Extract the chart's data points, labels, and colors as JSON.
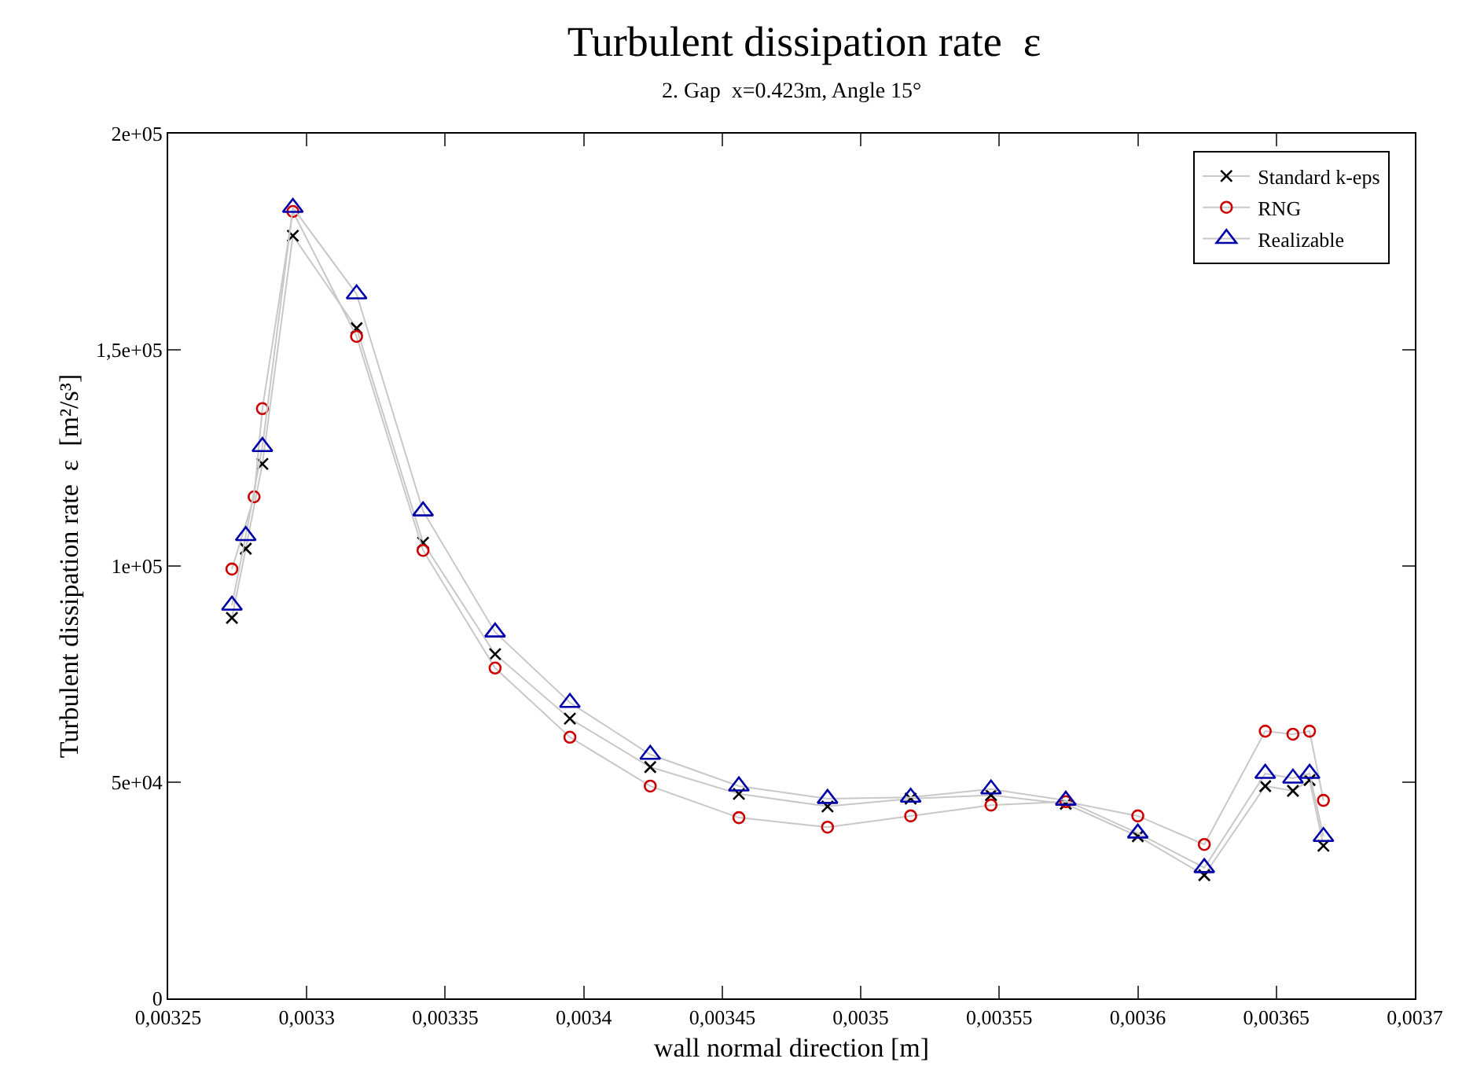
{
  "chart_data": {
    "type": "line",
    "title": "Turbulent dissipation rate  ε",
    "subtitle": "2. Gap  x=0.423m, Angle 15°",
    "xlabel": "wall normal direction [m]",
    "ylabel": "Turbulent dissipation rate  ε  [m²/s³]",
    "x": [
      0.003273,
      0.003278,
      0.003281,
      0.003284,
      0.003295,
      0.003318,
      0.003342,
      0.003368,
      0.003395,
      0.003424,
      0.003456,
      0.003488,
      0.003518,
      0.003547,
      0.003574,
      0.0036,
      0.003624,
      0.003646,
      0.003656,
      0.003662,
      0.003667
    ],
    "series": [
      {
        "name": "Standard k-eps",
        "color": "#000000",
        "marker": "cross",
        "values": [
          88000,
          104000,
          null,
          123600,
          176400,
          155000,
          105400,
          79600,
          64700,
          53500,
          47300,
          44400,
          46200,
          47000,
          45000,
          37500,
          28500,
          49100,
          48000,
          50500,
          35300
        ]
      },
      {
        "name": "RNG",
        "color": "#cc0000",
        "marker": "circle",
        "values": [
          99300,
          null,
          116000,
          136400,
          182000,
          153100,
          103600,
          76400,
          60400,
          49100,
          41800,
          39600,
          42200,
          44700,
          45500,
          42200,
          35600,
          61800,
          61100,
          61800,
          45800
        ]
      },
      {
        "name": "Realizable",
        "color": "#0000aa",
        "marker": "triangle",
        "values": [
          90900,
          107000,
          null,
          127600,
          182900,
          162900,
          112700,
          84700,
          68400,
          56400,
          49100,
          46200,
          46500,
          48400,
          45800,
          38200,
          30200,
          52000,
          50900,
          52000,
          37400
        ]
      }
    ],
    "xlim": [
      0.00325,
      0.0037
    ],
    "ylim": [
      0,
      200000
    ],
    "xticks": [
      {
        "value": 0.00325,
        "label": "0,00325"
      },
      {
        "value": 0.0033,
        "label": "0,0033"
      },
      {
        "value": 0.00335,
        "label": "0,00335"
      },
      {
        "value": 0.0034,
        "label": "0,0034"
      },
      {
        "value": 0.00345,
        "label": "0,00345"
      },
      {
        "value": 0.0035,
        "label": "0,0035"
      },
      {
        "value": 0.00355,
        "label": "0,00355"
      },
      {
        "value": 0.0036,
        "label": "0,0036"
      },
      {
        "value": 0.00365,
        "label": "0,00365"
      },
      {
        "value": 0.0037,
        "label": "0,0037"
      }
    ],
    "yticks": [
      0,
      {
        "value": 50000,
        "label": "5e+04"
      },
      {
        "value": 100000,
        "label": "1e+05"
      },
      {
        "value": 150000,
        "label": "1,5e+05"
      },
      {
        "value": 200000,
        "label": "2e+05"
      }
    ],
    "legend": "top right",
    "line_style": "solid"
  }
}
